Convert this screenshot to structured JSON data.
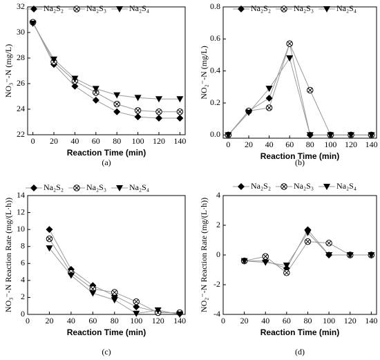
{
  "chart_data": [
    {
      "type": "line",
      "caption": "(a)",
      "xlabel": "Reaction Time (min)",
      "ylabel": "NO₃⁻-N  (mg/L)",
      "x": [
        0,
        20,
        40,
        60,
        80,
        100,
        120,
        140
      ],
      "xlim": [
        -5,
        145
      ],
      "xticks": [
        0,
        20,
        40,
        60,
        80,
        100,
        120,
        140
      ],
      "ylim": [
        22,
        32
      ],
      "yticks": [
        22,
        24,
        26,
        28,
        30,
        32
      ],
      "series": [
        {
          "name": "Na₂S₂",
          "color": "#000000",
          "marker": "diamond",
          "values": [
            30.8,
            27.5,
            25.8,
            24.7,
            23.8,
            23.4,
            23.3,
            23.3
          ]
        },
        {
          "name": "Na₂S₃",
          "color": "#000000",
          "marker": "circle-x",
          "values": [
            30.8,
            27.7,
            26.2,
            25.3,
            24.4,
            23.9,
            23.8,
            23.8
          ]
        },
        {
          "name": "Na₂S₄",
          "color": "#000000",
          "marker": "triangle-down",
          "values": [
            30.7,
            27.9,
            26.4,
            25.6,
            25.1,
            24.9,
            24.8,
            24.8
          ]
        }
      ]
    },
    {
      "type": "line",
      "caption": "(b)",
      "xlabel": "Reaction Time (min)",
      "ylabel": "NO₂⁻-N  (mg/L)",
      "x": [
        0,
        20,
        40,
        60,
        80,
        100,
        120,
        140
      ],
      "xlim": [
        -5,
        145
      ],
      "xticks": [
        0,
        20,
        40,
        60,
        80,
        100,
        120,
        140
      ],
      "ylim": [
        -0.02,
        0.8
      ],
      "yticks": [
        {
          "value": 0,
          "label": "0.0"
        },
        0.2,
        0.4,
        0.6,
        0.8
      ],
      "series": [
        {
          "name": "Na₂S₂",
          "color": "#000000",
          "marker": "diamond",
          "values": [
            0,
            0.15,
            0.23,
            0.57,
            0,
            0,
            0,
            0
          ]
        },
        {
          "name": "Na₂S₃",
          "color": "#000000",
          "marker": "circle-x",
          "values": [
            0,
            0.15,
            0.17,
            0.57,
            0.28,
            0,
            0,
            0
          ]
        },
        {
          "name": "Na₂S₄",
          "color": "#000000",
          "marker": "triangle-down",
          "values": [
            0,
            0.14,
            0.29,
            0.48,
            0,
            0,
            0,
            0
          ]
        }
      ]
    },
    {
      "type": "line",
      "caption": "(c)",
      "xlabel": "Reaction Time (min)",
      "ylabel": "NO₃⁻-N Reaction Rate (mg/(L·h))",
      "x": [
        20,
        40,
        60,
        80,
        100,
        120,
        140
      ],
      "xlim": [
        0,
        145
      ],
      "xticks": [
        0,
        20,
        40,
        60,
        80,
        100,
        120,
        140
      ],
      "ylim": [
        0,
        14
      ],
      "yticks": [
        0,
        2,
        4,
        6,
        8,
        10,
        12,
        14
      ],
      "series": [
        {
          "name": "Na₂S₂",
          "color": "#000000",
          "marker": "diamond",
          "values": [
            10.0,
            5.3,
            3.4,
            2.2,
            0.9,
            0.3,
            0.1
          ]
        },
        {
          "name": "Na₂S₃",
          "color": "#000000",
          "marker": "circle-x",
          "values": [
            8.9,
            4.9,
            3.0,
            2.6,
            1.5,
            0.2,
            0.2
          ]
        },
        {
          "name": "Na₂S₄",
          "color": "#000000",
          "marker": "triangle-down",
          "values": [
            7.8,
            4.6,
            2.5,
            1.7,
            0.1,
            0.5,
            0.0
          ]
        }
      ]
    },
    {
      "type": "line",
      "caption": "(d)",
      "xlabel": "Reaction Time (min)",
      "ylabel": "NO₂⁻-N Reaction Rate (mg/(L·h))",
      "x": [
        20,
        40,
        60,
        80,
        100,
        120,
        140
      ],
      "xlim": [
        0,
        145
      ],
      "xticks": [
        0,
        20,
        40,
        60,
        80,
        100,
        120,
        140
      ],
      "ylim": [
        -4,
        4
      ],
      "yticks": [
        -4,
        -2,
        0,
        2,
        4
      ],
      "series": [
        {
          "name": "Na₂S₂",
          "color": "#000000",
          "marker": "diamond",
          "values": [
            -0.4,
            -0.4,
            -0.9,
            1.7,
            0.0,
            0.0,
            0.0
          ]
        },
        {
          "name": "Na₂S₃",
          "color": "#000000",
          "marker": "circle-x",
          "values": [
            -0.4,
            -0.1,
            -1.2,
            0.9,
            0.8,
            0.0,
            0.0
          ]
        },
        {
          "name": "Na₂S₄",
          "color": "#000000",
          "marker": "triangle-down",
          "values": [
            -0.4,
            -0.5,
            -0.7,
            1.5,
            0.0,
            0.0,
            0.0
          ]
        }
      ]
    }
  ]
}
